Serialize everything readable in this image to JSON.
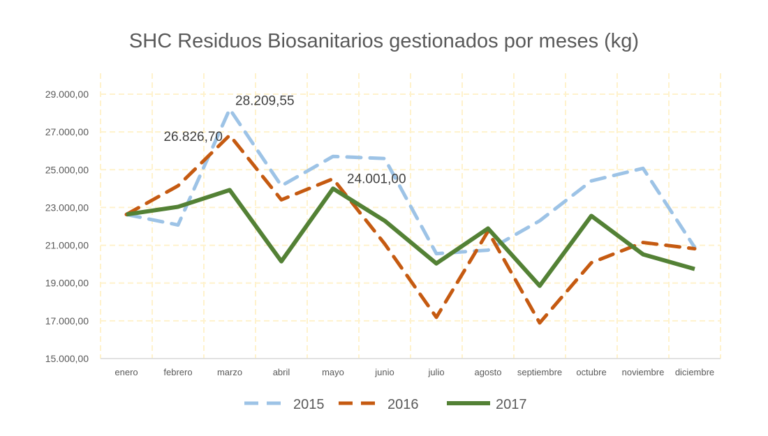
{
  "chart_data": {
    "type": "line",
    "title": "SHC Residuos Biosanitarios gestionados por meses (kg)",
    "xlabel": "",
    "ylabel": "",
    "categories": [
      "enero",
      "febrero",
      "marzo",
      "abril",
      "mayo",
      "junio",
      "julio",
      "agosto",
      "septiembre",
      "octubre",
      "noviembre",
      "diciembre"
    ],
    "ylim": [
      15000,
      29000
    ],
    "yticks": [
      15000,
      17000,
      19000,
      21000,
      23000,
      25000,
      27000,
      29000
    ],
    "ytick_labels": [
      "15.000,00",
      "17.000,00",
      "19.000,00",
      "21.000,00",
      "23.000,00",
      "25.000,00",
      "27.000,00",
      "29.000,00"
    ],
    "grid": true,
    "legend_position": "bottom",
    "series": [
      {
        "name": "2015",
        "color": "#9DC3E6",
        "style": "dashed",
        "values": [
          22630,
          22074,
          28209.55,
          24148,
          25704,
          25593,
          20556,
          20740,
          22296,
          24407,
          25074,
          20889
        ]
      },
      {
        "name": "2016",
        "color": "#C55A11",
        "style": "dashed",
        "values": [
          22630,
          24148,
          26826.7,
          23407,
          24519,
          21074,
          17185,
          21741,
          16889,
          20074,
          21148,
          20815
        ]
      },
      {
        "name": "2017",
        "color": "#538135",
        "style": "solid",
        "values": [
          22630,
          23037,
          23926,
          20148,
          24001.0,
          22296,
          20037,
          21889,
          18852,
          22556,
          20519,
          19741
        ]
      }
    ],
    "data_labels": [
      {
        "series": "2015",
        "category": "marzo",
        "text": "28.209,55"
      },
      {
        "series": "2016",
        "category": "marzo",
        "text": "26.826,70"
      },
      {
        "series": "2017",
        "category": "mayo",
        "text": "24.001,00"
      }
    ],
    "grid_color": "#FFF2CC",
    "axis_color": "#D9D9D9",
    "text_color": "#595959"
  }
}
